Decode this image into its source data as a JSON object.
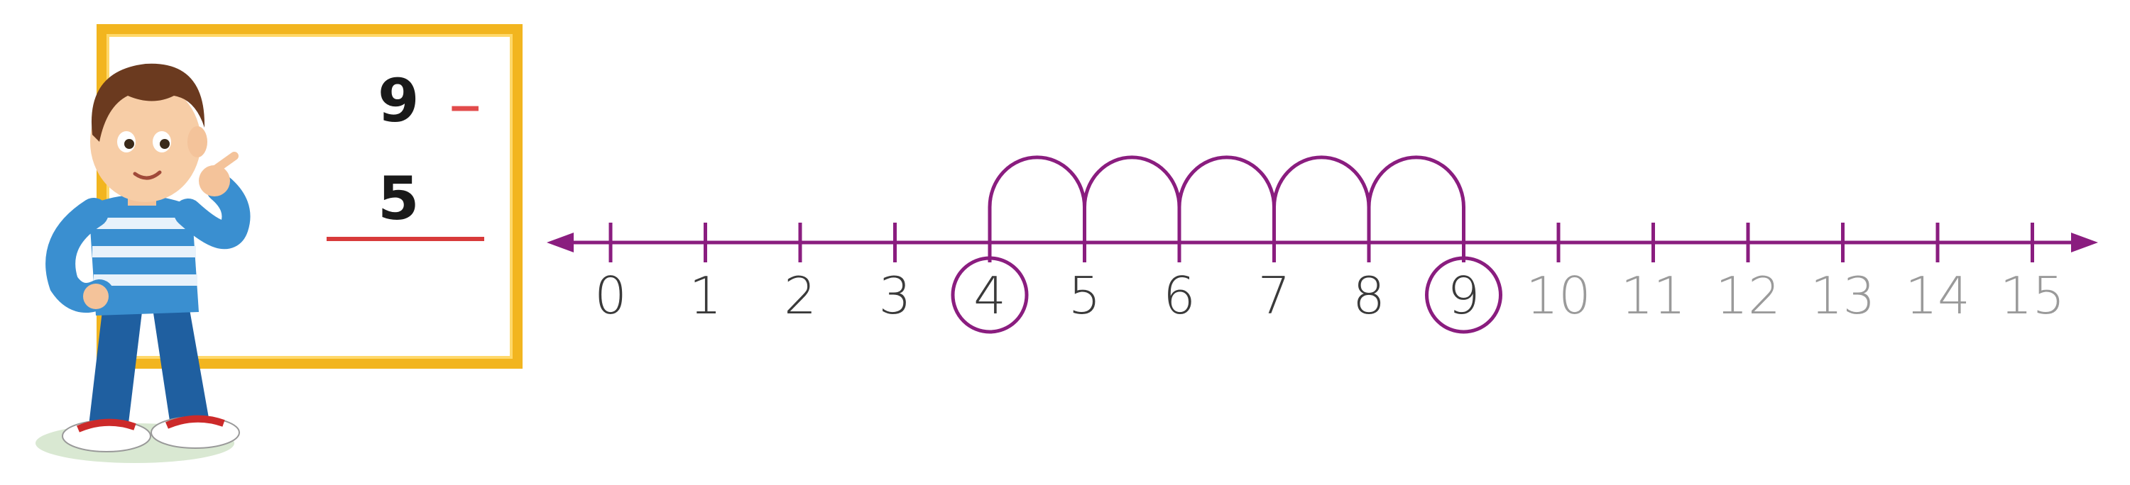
{
  "board": {
    "minuend": "9",
    "operator": "−",
    "subtrahend": "5"
  },
  "number_line": {
    "min": 0,
    "max": 15,
    "labels": [
      "0",
      "1",
      "2",
      "3",
      "4",
      "5",
      "6",
      "7",
      "8",
      "9",
      "10",
      "11",
      "12",
      "13",
      "14",
      "15"
    ],
    "circled": [
      4,
      9
    ],
    "hops": [
      [
        4,
        5
      ],
      [
        5,
        6
      ],
      [
        6,
        7
      ],
      [
        7,
        8
      ],
      [
        8,
        9
      ]
    ],
    "line_color": "#8a1d7f",
    "label_color_dark": "#3a3a3a",
    "label_color_light": "#9a9a9a",
    "light_from": 10
  },
  "character": {
    "shirt_color": "#3a8fd0",
    "pants_color": "#1f5fa0",
    "hair_color": "#6b3a1f"
  }
}
